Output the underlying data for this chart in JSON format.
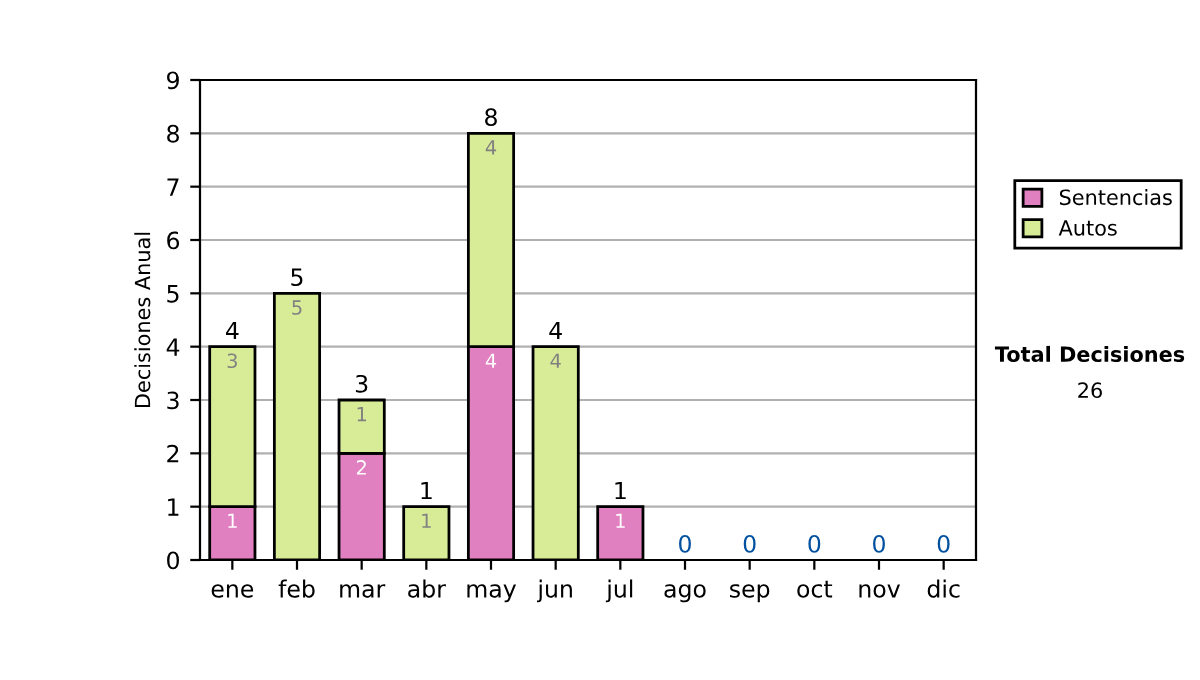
{
  "chart_data": {
    "type": "bar",
    "ylabel": "Decisiones Anual",
    "stacked": true,
    "categories": [
      "ene",
      "feb",
      "mar",
      "abr",
      "may",
      "jun",
      "jul",
      "ago",
      "sep",
      "oct",
      "nov",
      "dic"
    ],
    "series": [
      {
        "name": "Sentencias",
        "color": "#e080c0",
        "values": [
          1,
          0,
          2,
          0,
          4,
          0,
          1,
          0,
          0,
          0,
          0,
          0
        ],
        "value_labels": [
          "1",
          null,
          "2",
          null,
          "4",
          null,
          "1",
          null,
          null,
          null,
          null,
          null
        ]
      },
      {
        "name": "Autos",
        "color": "#d8ec98",
        "values": [
          3,
          5,
          1,
          1,
          4,
          4,
          0,
          0,
          0,
          0,
          0,
          0
        ],
        "value_labels": [
          "3",
          "5",
          "1",
          "1",
          "4",
          "4",
          null,
          null,
          null,
          null,
          null,
          null
        ]
      }
    ],
    "totals": [
      "4",
      "5",
      "3",
      "1",
      "8",
      "4",
      "1",
      "0",
      "0",
      "0",
      "0",
      "0"
    ],
    "ylim": [
      0,
      9
    ],
    "yticks": [
      0,
      1,
      2,
      3,
      4,
      5,
      6,
      7,
      8,
      9
    ],
    "grid": "y",
    "legend": "right",
    "annotations": [
      "Total Decisiones",
      "26"
    ]
  }
}
